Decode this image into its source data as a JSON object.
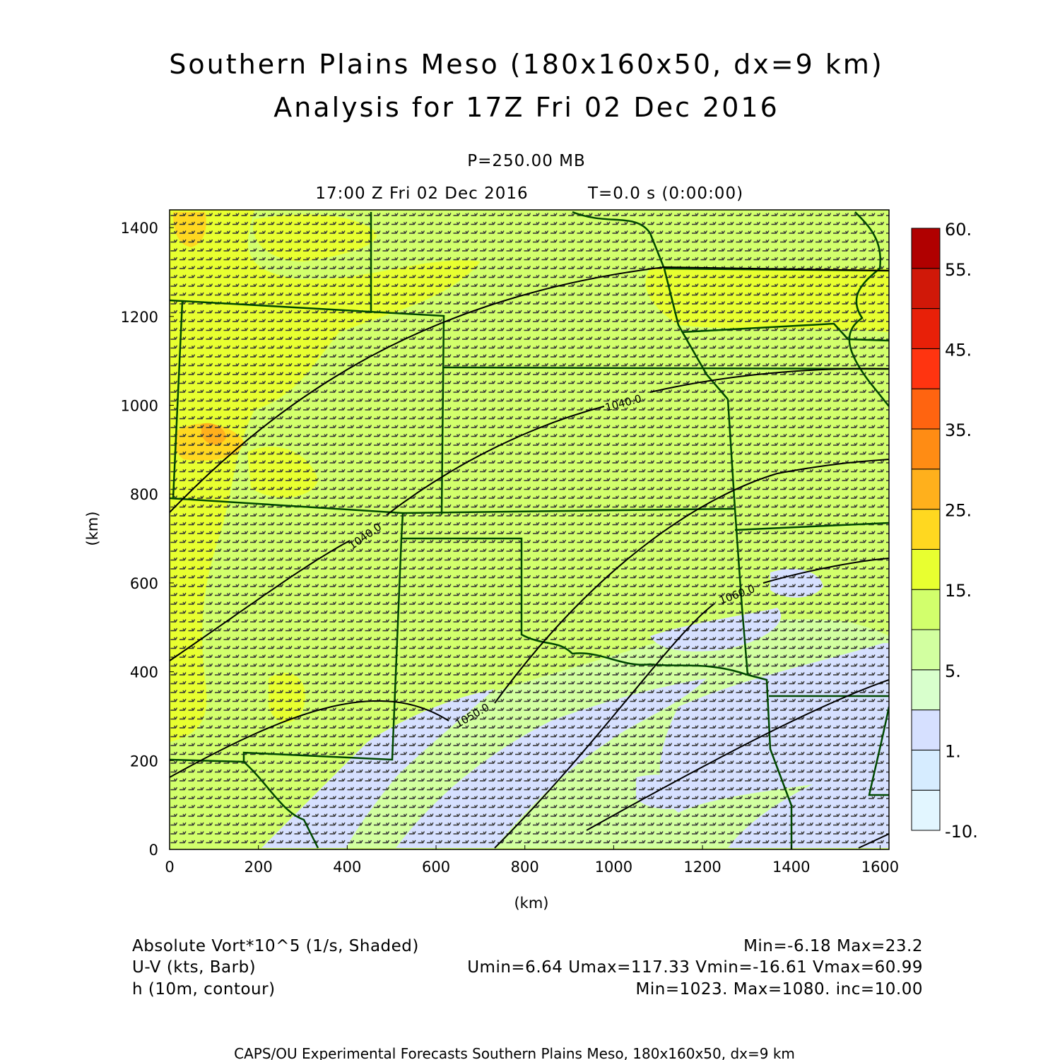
{
  "header": {
    "title_line1": "Southern Plains Meso (180x160x50, dx=9 km)",
    "title_line2": "Analysis for 17Z Fri 02 Dec 2016",
    "level": "P=250.00 MB",
    "valid_time": "17:00 Z Fri 02 Dec 2016",
    "model_time": "T=0.0 s (0:00:00)"
  },
  "chart_data": {
    "type": "heatmap",
    "description_fields": [
      "Absolute vorticity (shaded)",
      "U-V wind (barbs)",
      "height (contour)"
    ],
    "xlabel": "(km)",
    "ylabel": "(km)",
    "xlim": [
      0,
      1620
    ],
    "ylim": [
      0,
      1440
    ],
    "xticks": [
      0,
      200,
      400,
      600,
      800,
      1000,
      1200,
      1400,
      1600
    ],
    "yticks": [
      0,
      200,
      400,
      600,
      800,
      1000,
      1200,
      1400
    ],
    "contour_labels": [
      "1040.0",
      "1040.0",
      "1050.0",
      "1060.0"
    ],
    "colorbar": {
      "levels": [
        -10,
        0,
        1,
        2,
        5,
        10,
        15,
        20,
        25,
        30,
        35,
        40,
        45,
        50,
        55,
        60
      ],
      "labels": [
        "60.",
        "55.",
        "45.",
        "35.",
        "25.",
        "15.",
        "5.",
        "1.",
        "-10."
      ],
      "label_values": [
        60,
        55,
        45,
        35,
        25,
        15,
        5,
        1,
        -10
      ],
      "colors": [
        "#e2f6ff",
        "#d6ecff",
        "#d6e0ff",
        "#d8ffcc",
        "#d2ffa0",
        "#d2ff6c",
        "#e8ff30",
        "#ffd820",
        "#ffb01c",
        "#ff8c14",
        "#ff6410",
        "#ff3410",
        "#e82008",
        "#d01808",
        "#b00000"
      ]
    }
  },
  "legend": {
    "field1_name": "Absolute Vort*10^5 (1/s, Shaded)",
    "field1_stats": "Min=-6.18 Max=23.2",
    "field2_name": "U-V (kts, Barb)",
    "field2_stats": "Umin=6.64 Umax=117.33 Vmin=-16.61 Vmax=60.99",
    "field3_name": "h (10m, contour)",
    "field3_stats": "Min=1023. Max=1080. inc=10.00"
  },
  "footer": {
    "credit": "CAPS/OU Experimental Forecasts  Southern Plains Meso, 180x160x50, dx=9 km"
  }
}
